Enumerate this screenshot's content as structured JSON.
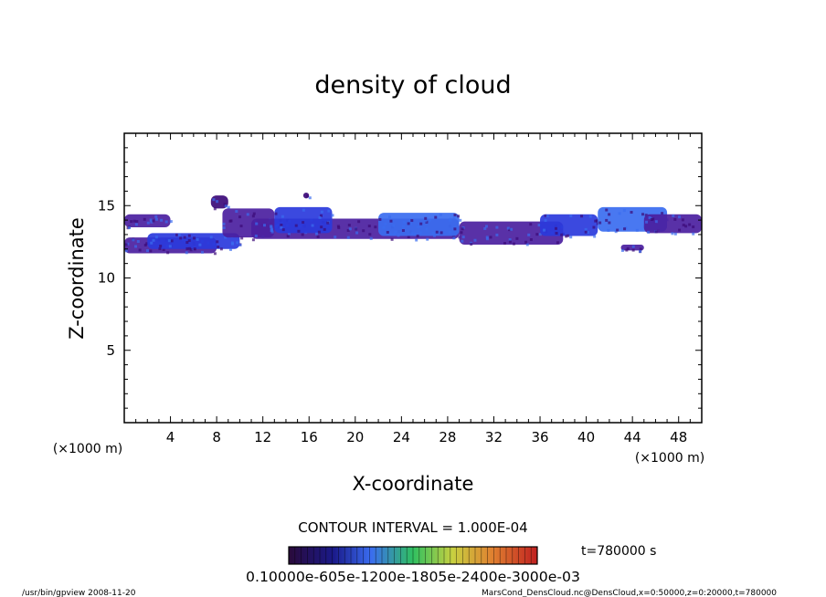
{
  "chart_data": {
    "type": "heatmap",
    "title": "density of cloud",
    "xlabel": "X-coordinate",
    "ylabel": "Z-coordinate",
    "x_unit": "(×1000 m)",
    "y_unit": "(×1000 m)",
    "xlim": [
      0,
      50
    ],
    "ylim": [
      0,
      20
    ],
    "x_ticks": [
      4,
      8,
      12,
      16,
      20,
      24,
      28,
      32,
      36,
      40,
      44,
      48
    ],
    "y_ticks": [
      5,
      10,
      15
    ],
    "grid": false,
    "contour_interval_text": "CONTOUR INTERVAL = 1.000E-04",
    "time_text": "t=780000 s",
    "colorbar_labels_text": "0.10000e-605e-1200e-1805e-2400e-3000e-03",
    "colors": {
      "low": "#3c0a78",
      "mid": "#4b1fa0",
      "high": "#2a3adc",
      "peak": "#3a6cf0"
    },
    "cloud_bands": [
      {
        "x": [
          0,
          4
        ],
        "z": [
          13.5,
          14.4
        ],
        "level": "mid"
      },
      {
        "x": [
          0,
          8
        ],
        "z": [
          11.7,
          12.8
        ],
        "level": "mid"
      },
      {
        "x": [
          2,
          10
        ],
        "z": [
          12.0,
          13.1
        ],
        "level": "high"
      },
      {
        "x": [
          7.5,
          9
        ],
        "z": [
          14.8,
          15.7
        ],
        "level": "low"
      },
      {
        "x": [
          8.5,
          13
        ],
        "z": [
          12.8,
          14.8
        ],
        "level": "mid"
      },
      {
        "x": [
          11,
          29
        ],
        "z": [
          12.7,
          14.1
        ],
        "level": "mid"
      },
      {
        "x": [
          13,
          18
        ],
        "z": [
          13.1,
          14.9
        ],
        "level": "high"
      },
      {
        "x": [
          22,
          29
        ],
        "z": [
          12.9,
          14.5
        ],
        "level": "peak"
      },
      {
        "x": [
          29,
          38
        ],
        "z": [
          12.3,
          13.9
        ],
        "level": "mid"
      },
      {
        "x": [
          36,
          41
        ],
        "z": [
          12.9,
          14.4
        ],
        "level": "high"
      },
      {
        "x": [
          41,
          47
        ],
        "z": [
          13.2,
          14.9
        ],
        "level": "peak"
      },
      {
        "x": [
          45,
          50
        ],
        "z": [
          13.1,
          14.4
        ],
        "level": "mid"
      },
      {
        "x": [
          15.5,
          16
        ],
        "z": [
          15.5,
          15.9
        ],
        "level": "low"
      },
      {
        "x": [
          43,
          45
        ],
        "z": [
          11.9,
          12.3
        ],
        "level": "mid"
      }
    ]
  },
  "footer": {
    "left": "/usr/bin/gpview   2008-11-20",
    "right": "MarsCond_DensCloud.nc@DensCloud,x=0:50000,z=0:20000,t=780000"
  }
}
